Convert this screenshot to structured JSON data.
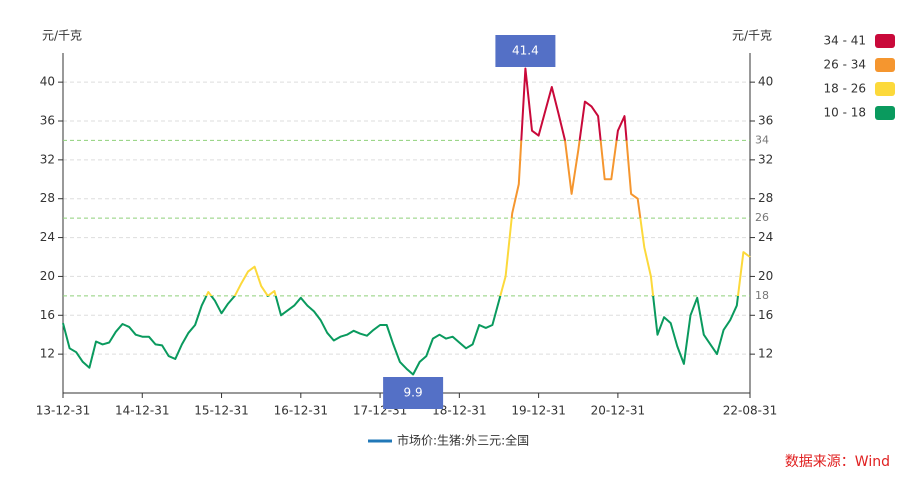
{
  "chart_data": {
    "type": "line",
    "y_label": "元/千克",
    "y2_label": "元/千克",
    "source": "数据来源：Wind",
    "x": [
      "13-12-31",
      "14-01-31",
      "14-02-28",
      "14-03-31",
      "14-04-30",
      "14-05-31",
      "14-06-30",
      "14-07-31",
      "14-08-31",
      "14-09-30",
      "14-10-31",
      "14-11-30",
      "14-12-31",
      "15-01-31",
      "15-02-28",
      "15-03-31",
      "15-04-30",
      "15-05-31",
      "15-06-30",
      "15-07-31",
      "15-08-31",
      "15-09-30",
      "15-10-31",
      "15-11-30",
      "15-12-31",
      "16-01-31",
      "16-02-29",
      "16-03-31",
      "16-04-30",
      "16-05-31",
      "16-06-30",
      "16-07-31",
      "16-08-31",
      "16-09-30",
      "16-10-31",
      "16-11-30",
      "16-12-31",
      "17-01-31",
      "17-02-28",
      "17-03-31",
      "17-04-30",
      "17-05-31",
      "17-06-30",
      "17-07-31",
      "17-08-31",
      "17-09-30",
      "17-10-31",
      "17-11-30",
      "17-12-31",
      "18-01-31",
      "18-02-28",
      "18-03-31",
      "18-04-30",
      "18-05-31",
      "18-06-30",
      "18-07-31",
      "18-08-31",
      "18-09-30",
      "18-10-31",
      "18-11-30",
      "18-12-31",
      "19-01-31",
      "19-02-28",
      "19-03-31",
      "19-04-30",
      "19-05-31",
      "19-06-30",
      "19-07-31",
      "19-08-31",
      "19-09-30",
      "19-10-31",
      "19-11-30",
      "19-12-31",
      "20-01-31",
      "20-02-29",
      "20-03-31",
      "20-04-30",
      "20-05-31",
      "20-06-30",
      "20-07-31",
      "20-08-31",
      "20-09-30",
      "20-10-31",
      "20-11-30",
      "20-12-31",
      "21-01-31",
      "21-02-28",
      "21-03-31",
      "21-04-30",
      "21-05-31",
      "21-06-30",
      "21-07-31",
      "21-08-31",
      "21-09-30",
      "21-10-31",
      "21-11-30",
      "21-12-31",
      "22-01-31",
      "22-02-28",
      "22-03-31",
      "22-04-30",
      "22-05-31",
      "22-06-30",
      "22-07-31",
      "22-08-31"
    ],
    "series": [
      {
        "name": "市场价:生猪:外三元:全国",
        "color": "#2178b8",
        "values": [
          15.2,
          12.6,
          12.2,
          11.2,
          10.6,
          13.3,
          13.0,
          13.2,
          14.3,
          15.1,
          14.8,
          14.0,
          13.8,
          13.8,
          13.0,
          12.9,
          11.8,
          11.5,
          13.0,
          14.2,
          15.0,
          17.0,
          18.4,
          17.5,
          16.2,
          17.2,
          18.0,
          19.3,
          20.5,
          21.0,
          19.0,
          18.0,
          18.5,
          16.0,
          16.5,
          17.0,
          17.8,
          17.0,
          16.4,
          15.5,
          14.2,
          13.4,
          13.8,
          14.0,
          14.4,
          14.1,
          13.9,
          14.5,
          15.0,
          15.0,
          13.0,
          11.2,
          10.5,
          9.9,
          11.2,
          11.8,
          13.6,
          14.0,
          13.6,
          13.8,
          13.2,
          12.6,
          13.0,
          15.0,
          14.7,
          15.0,
          17.5,
          20.0,
          26.5,
          29.5,
          41.4,
          35.0,
          34.5,
          37.0,
          39.5,
          36.8,
          34.0,
          28.5,
          33.0,
          38.0,
          37.5,
          36.5,
          30.0,
          30.0,
          35.0,
          36.5,
          28.5,
          28.0,
          23.0,
          20.0,
          14.0,
          15.8,
          15.2,
          12.8,
          11.0,
          16.0,
          17.8,
          14.0,
          13.0,
          12.0,
          14.5,
          15.5,
          17.0,
          22.5,
          22.0
        ]
      }
    ],
    "xticks": [
      "13-12-31",
      "14-12-31",
      "15-12-31",
      "16-12-31",
      "17-12-31",
      "18-12-31",
      "19-12-31",
      "20-12-31",
      "22-08-31"
    ],
    "ylim": [
      8,
      43
    ],
    "yticks": [
      12,
      16,
      20,
      24,
      28,
      32,
      36,
      40
    ],
    "y2lim": [
      8,
      43
    ],
    "y2ticks": [
      12,
      16,
      20,
      24,
      28,
      32,
      36,
      40
    ],
    "grid": true,
    "mark_lines": [
      18,
      26,
      34
    ],
    "pieces": [
      {
        "label": "34 - 41",
        "min": 34,
        "max": 41,
        "color": "#c9093a"
      },
      {
        "label": "26 - 34",
        "min": 26,
        "max": 34,
        "color": "#f5962f"
      },
      {
        "label": "18 - 26",
        "min": 18,
        "max": 26,
        "color": "#fcd93b"
      },
      {
        "label": "10 - 18",
        "min": 10,
        "max": 18,
        "color": "#0a9a5e"
      }
    ],
    "annotations": [
      {
        "x": "19-10-31",
        "value": 41.4,
        "position": "top"
      },
      {
        "x": "18-05-31",
        "value": 9.9,
        "position": "bottom"
      }
    ]
  }
}
